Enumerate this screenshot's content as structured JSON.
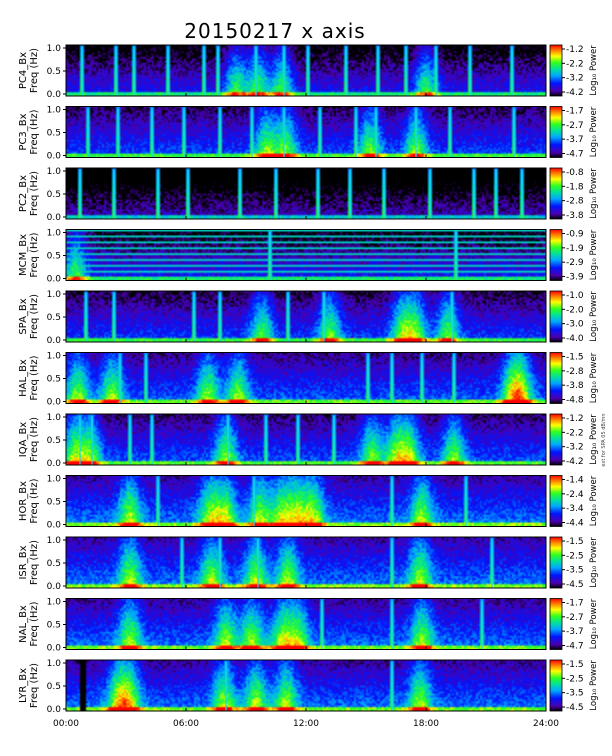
{
  "chart_data": {
    "type": "heatmap",
    "title": "20150217 x axis",
    "x_ticks": [
      "00:00",
      "06:00",
      "12:00",
      "18:00",
      "24:00"
    ],
    "xlim": [
      0,
      24
    ],
    "ylim": [
      0,
      1.0
    ],
    "y_ticks": [
      "0.0",
      "0.5",
      "1.0"
    ],
    "colorbar_label": "Log₁₀ Power",
    "side_note": "ext for SPA 05 dB/mn",
    "panels": [
      {
        "station": "PC4",
        "ylabel": "PC4_Bx\nFreq (Hz)",
        "cb_ticks": [
          "-1.2",
          "-2.2",
          "-3.2",
          "-4.2"
        ],
        "dark": 0.6,
        "streaks": [
          0.8,
          2.5,
          3.4,
          5.1,
          6.9,
          7.6,
          9.5,
          10.9,
          12.1,
          14.0,
          15.6,
          17.0,
          18.5,
          20.2,
          22.3
        ],
        "hot": [
          8.5,
          9.6,
          10.8,
          18.0
        ]
      },
      {
        "station": "PC3",
        "ylabel": "PC3_Bx\nFreq (Hz)",
        "cb_ticks": [
          "-1.7",
          "-2.7",
          "-3.7",
          "-4.7"
        ],
        "dark": 0.35,
        "streaks": [
          1.1,
          2.6,
          4.3,
          5.9,
          7.7,
          9.3,
          10.9,
          12.7,
          14.5,
          15.5,
          17.5,
          19.2,
          22.4
        ],
        "hot": [
          10.0,
          11.0,
          15.2,
          17.5
        ]
      },
      {
        "station": "PC2",
        "ylabel": "PC2_Bx\nFreq (Hz)",
        "cb_ticks": [
          "-0.8",
          "-1.8",
          "-2.8",
          "-3.8"
        ],
        "dark": 0.92,
        "streaks": [
          0.7,
          2.4,
          4.6,
          6.1,
          8.7,
          10.5,
          12.6,
          14.2,
          15.9,
          18.2,
          20.4,
          21.5,
          22.8
        ],
        "hot": []
      },
      {
        "station": "MCM",
        "ylabel": "MCM_Bx\nFreq (Hz)",
        "cb_ticks": [
          "-0.9",
          "-1.9",
          "-2.9",
          "-3.9"
        ],
        "dark": 0.55,
        "streaks": [
          10.2,
          19.5
        ],
        "hot": [
          0.5
        ],
        "lines": true
      },
      {
        "station": "SPA",
        "ylabel": "SPA_Bx\nFreq (Hz)",
        "cb_ticks": [
          "-1.0",
          "-2.0",
          "-3.0",
          "-4.0"
        ],
        "dark": 0.4,
        "streaks": [
          1.0,
          2.4,
          6.4,
          7.7,
          11.1,
          12.9,
          19.3
        ],
        "hot": [
          9.8,
          13.2,
          16.8,
          17.5,
          19.1
        ]
      },
      {
        "station": "HAL",
        "ylabel": "HAL_Bx\nFreq (Hz)",
        "cb_ticks": [
          "-1.5",
          "-2.8",
          "-3.8",
          "-4.8"
        ],
        "dark": 0.25,
        "streaks": [
          2.7,
          4.0,
          15.1,
          16.3,
          17.8,
          19.4
        ],
        "hot": [
          0.6,
          2.3,
          7.1,
          8.6,
          22.3,
          22.8
        ]
      },
      {
        "station": "IQA",
        "ylabel": "IQA_Bx\nFreq (Hz)",
        "cb_ticks": [
          "-1.2",
          "-2.2",
          "-3.2",
          "-4.2"
        ],
        "dark": 0.3,
        "streaks": [
          0.7,
          1.3,
          3.2,
          4.3,
          8.1,
          10.0,
          11.6,
          13.4
        ],
        "hot": [
          0.4,
          1.2,
          8.0,
          15.3,
          16.5,
          17.2,
          19.4
        ]
      },
      {
        "station": "HOR",
        "ylabel": "HOR_Bx\nFreq (Hz)",
        "cb_ticks": [
          "-1.4",
          "-2.4",
          "-3.4",
          "-4.4"
        ],
        "dark": 0.15,
        "streaks": [
          4.6,
          9.4,
          16.3,
          20.0
        ],
        "hot": [
          3.2,
          7.2,
          8.0,
          9.7,
          10.8,
          11.6,
          12.4,
          17.8
        ]
      },
      {
        "station": "ISR",
        "ylabel": "ISR_Bx\nFreq (Hz)",
        "cb_ticks": [
          "-1.5",
          "-2.5",
          "-3.5",
          "-4.5"
        ],
        "dark": 0.15,
        "streaks": [
          5.8,
          7.7,
          9.6,
          16.3,
          21.3
        ],
        "hot": [
          3.2,
          7.3,
          9.5,
          11.1,
          17.7
        ]
      },
      {
        "station": "NAL",
        "ylabel": "NAL_Bx\nFreq (Hz)",
        "cb_ticks": [
          "-1.7",
          "-2.7",
          "-3.7",
          "-4.7"
        ],
        "dark": 0.18,
        "streaks": [
          12.8,
          16.3,
          20.8
        ],
        "hot": [
          3.2,
          8.0,
          9.3,
          10.8,
          11.6,
          17.8
        ]
      },
      {
        "station": "LYR",
        "ylabel": "LYR_Bx\nFreq (Hz)",
        "cb_ticks": [
          "-1.5",
          "-2.5",
          "-3.5",
          "-4.5"
        ],
        "dark": 0.18,
        "streaks": [
          8.0,
          16.3
        ],
        "hot": [
          2.6,
          3.2,
          7.9,
          9.5,
          11.0,
          17.7
        ],
        "gap": [
          0.72,
          0.95
        ]
      }
    ]
  }
}
